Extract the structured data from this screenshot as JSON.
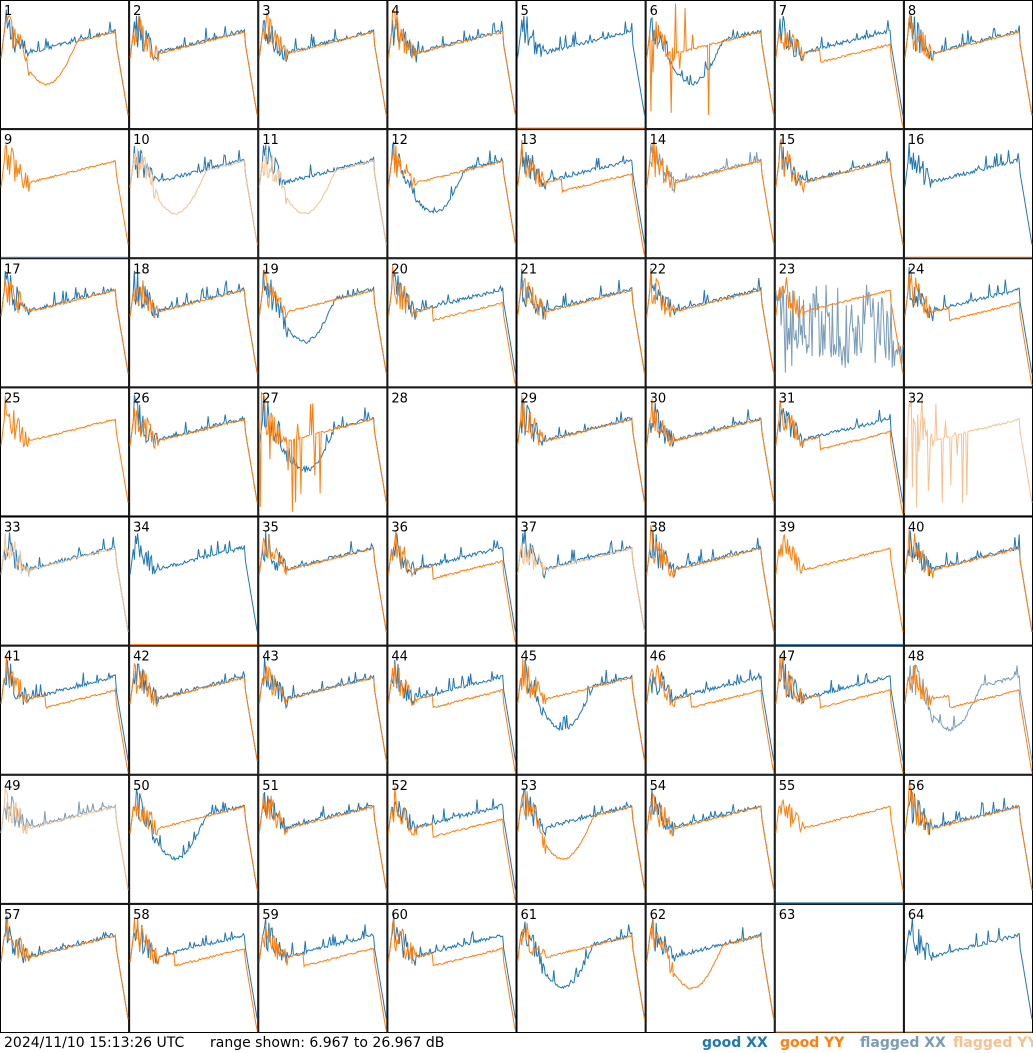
{
  "timestamp": "2024/11/10 15:13:26 UTC",
  "range_text": "range shown: 6.967 to 26.967 dB",
  "legend": {
    "good_xx": "good XX",
    "good_yy": "good YY",
    "flagged_xx": "flagged XX",
    "flagged_yy": "flagged YY"
  },
  "colors": {
    "good_xx": "#1f77b4",
    "good_yy": "#ff7f0e",
    "flagged_xx": "#7a9cb8",
    "flagged_yy": "#f7c18f"
  },
  "chart_data": {
    "type": "line",
    "ylim": [
      6.967,
      26.967
    ],
    "units": "dB",
    "grid": {
      "rows": 8,
      "cols": 8
    },
    "tiles": [
      {
        "label": "1",
        "xx": "normal",
        "yy": "dip",
        "flag_xx": false,
        "flag_yy": false
      },
      {
        "label": "2",
        "xx": "normal",
        "yy": "normal",
        "flag_xx": false,
        "flag_yy": false
      },
      {
        "label": "3",
        "xx": "normal",
        "yy": "normal",
        "flag_xx": false,
        "flag_yy": false
      },
      {
        "label": "4",
        "xx": "normal",
        "yy": "normal",
        "flag_xx": false,
        "flag_yy": false
      },
      {
        "label": "5",
        "xx": "normal",
        "yy": "dead",
        "flag_xx": false,
        "flag_yy": false
      },
      {
        "label": "6",
        "xx": "dip",
        "yy": "spiky",
        "flag_xx": false,
        "flag_yy": false
      },
      {
        "label": "7",
        "xx": "normal",
        "yy": "drop",
        "flag_xx": false,
        "flag_yy": false
      },
      {
        "label": "8",
        "xx": "normal",
        "yy": "normal",
        "flag_xx": false,
        "flag_yy": false
      },
      {
        "label": "9",
        "xx": "dead",
        "yy": "normal",
        "flag_xx": true,
        "flag_yy": false
      },
      {
        "label": "10",
        "xx": "normal",
        "yy": "dip",
        "flag_xx": false,
        "flag_yy": true
      },
      {
        "label": "11",
        "xx": "normal",
        "yy": "dip",
        "flag_xx": false,
        "flag_yy": true
      },
      {
        "label": "12",
        "xx": "dip",
        "yy": "normal",
        "flag_xx": false,
        "flag_yy": false
      },
      {
        "label": "13",
        "xx": "normal",
        "yy": "drop",
        "flag_xx": false,
        "flag_yy": false
      },
      {
        "label": "14",
        "xx": "normal",
        "yy": "normal",
        "flag_xx": true,
        "flag_yy": false
      },
      {
        "label": "15",
        "xx": "normal",
        "yy": "normal",
        "flag_xx": false,
        "flag_yy": false
      },
      {
        "label": "16",
        "xx": "normal",
        "yy": "dead",
        "flag_xx": false,
        "flag_yy": false
      },
      {
        "label": "17",
        "xx": "normal",
        "yy": "normal",
        "flag_xx": false,
        "flag_yy": false
      },
      {
        "label": "18",
        "xx": "normal",
        "yy": "normal",
        "flag_xx": false,
        "flag_yy": false
      },
      {
        "label": "19",
        "xx": "dip",
        "yy": "normal",
        "flag_xx": false,
        "flag_yy": false
      },
      {
        "label": "20",
        "xx": "normal",
        "yy": "drop",
        "flag_xx": false,
        "flag_yy": false
      },
      {
        "label": "21",
        "xx": "normal",
        "yy": "normal",
        "flag_xx": false,
        "flag_yy": false
      },
      {
        "label": "22",
        "xx": "normal",
        "yy": "normal",
        "flag_xx": false,
        "flag_yy": false
      },
      {
        "label": "23",
        "xx": "noise",
        "yy": "normal",
        "flag_xx": true,
        "flag_yy": false
      },
      {
        "label": "24",
        "xx": "normal",
        "yy": "drop",
        "flag_xx": false,
        "flag_yy": false
      },
      {
        "label": "25",
        "xx": "dead",
        "yy": "normal",
        "flag_xx": false,
        "flag_yy": false
      },
      {
        "label": "26",
        "xx": "normal",
        "yy": "normal",
        "flag_xx": false,
        "flag_yy": false
      },
      {
        "label": "27",
        "xx": "dip",
        "yy": "spiky",
        "flag_xx": false,
        "flag_yy": false
      },
      {
        "label": "28",
        "xx": "dead",
        "yy": "dead",
        "flag_xx": false,
        "flag_yy": false
      },
      {
        "label": "29",
        "xx": "normal",
        "yy": "normal",
        "flag_xx": false,
        "flag_yy": false
      },
      {
        "label": "30",
        "xx": "normal",
        "yy": "normal",
        "flag_xx": false,
        "flag_yy": false
      },
      {
        "label": "31",
        "xx": "normal",
        "yy": "drop",
        "flag_xx": false,
        "flag_yy": false
      },
      {
        "label": "32",
        "xx": "dead",
        "yy": "spiky",
        "flag_xx": false,
        "flag_yy": true
      },
      {
        "label": "33",
        "xx": "normal",
        "yy": "normal",
        "flag_xx": false,
        "flag_yy": true
      },
      {
        "label": "34",
        "xx": "normal",
        "yy": "dead",
        "flag_xx": false,
        "flag_yy": false
      },
      {
        "label": "35",
        "xx": "normal",
        "yy": "normal",
        "flag_xx": false,
        "flag_yy": false
      },
      {
        "label": "36",
        "xx": "normal",
        "yy": "drop",
        "flag_xx": false,
        "flag_yy": false
      },
      {
        "label": "37",
        "xx": "normal",
        "yy": "normal",
        "flag_xx": false,
        "flag_yy": true
      },
      {
        "label": "38",
        "xx": "normal",
        "yy": "normal",
        "flag_xx": false,
        "flag_yy": false
      },
      {
        "label": "39",
        "xx": "dead",
        "yy": "normal",
        "flag_xx": false,
        "flag_yy": false
      },
      {
        "label": "40",
        "xx": "normal",
        "yy": "normal",
        "flag_xx": false,
        "flag_yy": false
      },
      {
        "label": "41",
        "xx": "normal",
        "yy": "drop",
        "flag_xx": false,
        "flag_yy": false
      },
      {
        "label": "42",
        "xx": "normal",
        "yy": "normal",
        "flag_xx": false,
        "flag_yy": false
      },
      {
        "label": "43",
        "xx": "normal",
        "yy": "normal",
        "flag_xx": false,
        "flag_yy": false
      },
      {
        "label": "44",
        "xx": "normal",
        "yy": "drop",
        "flag_xx": false,
        "flag_yy": false
      },
      {
        "label": "45",
        "xx": "dip",
        "yy": "normal",
        "flag_xx": false,
        "flag_yy": false
      },
      {
        "label": "46",
        "xx": "normal",
        "yy": "drop",
        "flag_xx": false,
        "flag_yy": false
      },
      {
        "label": "47",
        "xx": "normal",
        "yy": "drop",
        "flag_xx": false,
        "flag_yy": false
      },
      {
        "label": "48",
        "xx": "dip",
        "yy": "drop",
        "flag_xx": true,
        "flag_yy": false
      },
      {
        "label": "49",
        "xx": "normal",
        "yy": "normal",
        "flag_xx": true,
        "flag_yy": true
      },
      {
        "label": "50",
        "xx": "dip",
        "yy": "normal",
        "flag_xx": false,
        "flag_yy": false
      },
      {
        "label": "51",
        "xx": "normal",
        "yy": "normal",
        "flag_xx": false,
        "flag_yy": false
      },
      {
        "label": "52",
        "xx": "normal",
        "yy": "drop",
        "flag_xx": false,
        "flag_yy": false
      },
      {
        "label": "53",
        "xx": "normal",
        "yy": "dip",
        "flag_xx": false,
        "flag_yy": false
      },
      {
        "label": "54",
        "xx": "normal",
        "yy": "normal",
        "flag_xx": false,
        "flag_yy": false
      },
      {
        "label": "55",
        "xx": "dead",
        "yy": "normal",
        "flag_xx": false,
        "flag_yy": false
      },
      {
        "label": "56",
        "xx": "normal",
        "yy": "normal",
        "flag_xx": false,
        "flag_yy": false
      },
      {
        "label": "57",
        "xx": "normal",
        "yy": "normal",
        "flag_xx": false,
        "flag_yy": false
      },
      {
        "label": "58",
        "xx": "normal",
        "yy": "drop",
        "flag_xx": false,
        "flag_yy": false
      },
      {
        "label": "59",
        "xx": "normal",
        "yy": "drop",
        "flag_xx": false,
        "flag_yy": false
      },
      {
        "label": "60",
        "xx": "normal",
        "yy": "drop",
        "flag_xx": false,
        "flag_yy": false
      },
      {
        "label": "61",
        "xx": "dip",
        "yy": "normal",
        "flag_xx": false,
        "flag_yy": false
      },
      {
        "label": "62",
        "xx": "normal",
        "yy": "dip",
        "flag_xx": false,
        "flag_yy": false
      },
      {
        "label": "63",
        "xx": "dead",
        "yy": "dead",
        "flag_xx": false,
        "flag_yy": false
      },
      {
        "label": "64",
        "xx": "normal",
        "yy": "dead",
        "flag_xx": false,
        "flag_yy": false
      }
    ]
  }
}
